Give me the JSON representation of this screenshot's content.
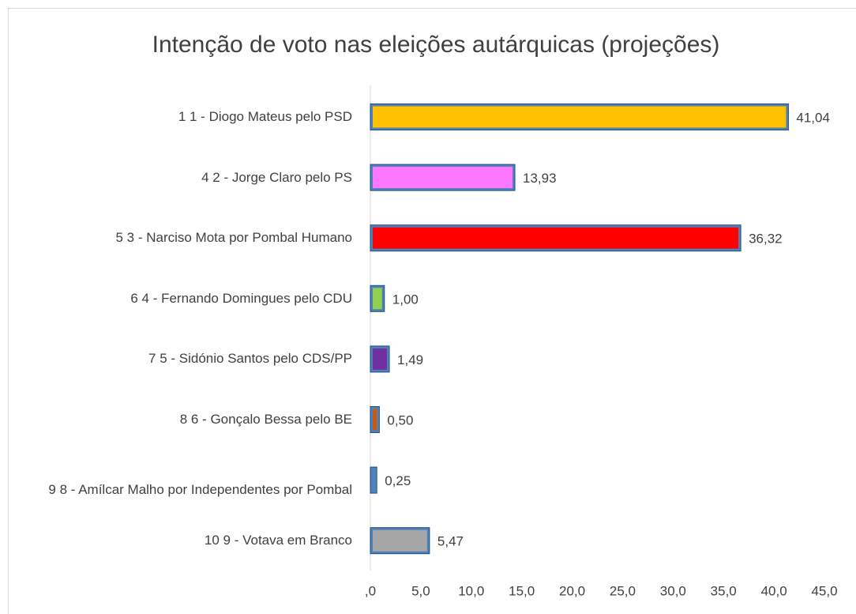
{
  "chart_data": {
    "type": "bar",
    "orientation": "horizontal",
    "title": "Intenção de voto nas eleições autárquicas (projeções)",
    "categories": [
      "1 1 - Diogo Mateus pelo PSD",
      "4 2 - Jorge Claro pelo PS",
      "5 3 - Narciso Mota por Pombal Humano",
      "6 4 - Fernando Domingues pelo CDU",
      "7 5 - Sidónio Santos pelo CDS/PP",
      "8 6 - Gonçalo Bessa pelo BE",
      "9 8 - Amílcar Malho por Independentes por Pombal",
      "10 9 - Votava em Branco"
    ],
    "values": [
      41.04,
      13.93,
      36.32,
      1.0,
      1.49,
      0.5,
      0.25,
      5.47
    ],
    "value_labels": [
      "41,04",
      "13,93",
      "36,32",
      "1,00",
      "1,49",
      "0,50",
      "0,25",
      "5,47"
    ],
    "colors": [
      "#ffc000",
      "#ff77ff",
      "#ff0000",
      "#92d050",
      "#7030a0",
      "#c55a11",
      "#4f81bd",
      "#a6a6a6"
    ],
    "border_color": "#4f81bd",
    "xlim": [
      0,
      45
    ],
    "xticks": [
      {
        "value": 0,
        "label": ",0"
      },
      {
        "value": 5,
        "label": "5,0"
      },
      {
        "value": 10,
        "label": "10,0"
      },
      {
        "value": 15,
        "label": "15,0"
      },
      {
        "value": 20,
        "label": "20,0"
      },
      {
        "value": 25,
        "label": "25,0"
      },
      {
        "value": 30,
        "label": "30,0"
      },
      {
        "value": 35,
        "label": "35,0"
      },
      {
        "value": 40,
        "label": "40,0"
      },
      {
        "value": 45,
        "label": "45,0"
      }
    ]
  }
}
